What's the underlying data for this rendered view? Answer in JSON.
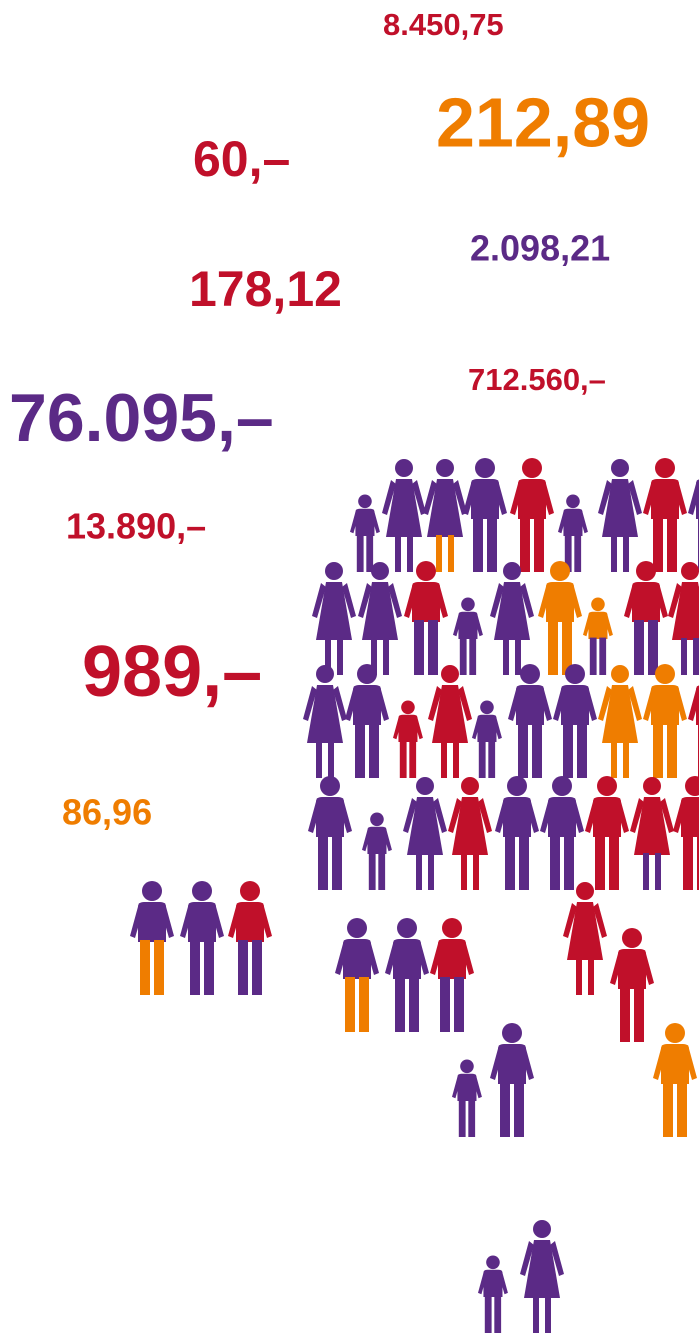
{
  "numbers": [
    "8.450,75",
    "212,89",
    "60,–",
    "2.098,21",
    "178,12",
    "712.560,–",
    "76.095,–",
    "13.890,–",
    "989,–",
    "86,96"
  ]
}
